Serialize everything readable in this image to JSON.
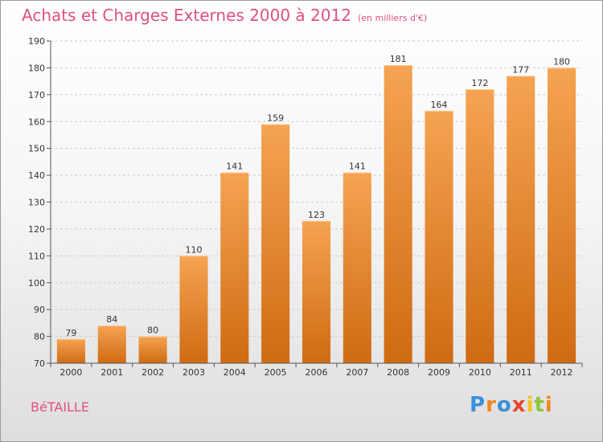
{
  "title": "Achats et Charges Externes 2000 à 2012",
  "unit_note": "(en milliers d'€)",
  "commune": "BéTAILLE",
  "logo": {
    "letters": [
      "P",
      "r",
      "o",
      "x",
      "i",
      "t",
      "i"
    ]
  },
  "colors": {
    "bar_top": "#f5a352",
    "bar_bottom": "#cf6b12",
    "title": "#e0527a",
    "grid": "#cccccc"
  },
  "chart_data": {
    "type": "bar",
    "title": "Achats et Charges Externes 2000 à 2012",
    "subtitle": "(en milliers d'€)",
    "xlabel": "",
    "ylabel": "",
    "categories": [
      "2000",
      "2001",
      "2002",
      "2003",
      "2004",
      "2005",
      "2006",
      "2007",
      "2008",
      "2009",
      "2010",
      "2011",
      "2012"
    ],
    "values": [
      79,
      84,
      80,
      110,
      141,
      159,
      123,
      141,
      181,
      164,
      172,
      177,
      180
    ],
    "ylim": [
      70,
      190
    ],
    "yticks": [
      70,
      80,
      90,
      100,
      110,
      120,
      130,
      140,
      150,
      160,
      170,
      180,
      190
    ],
    "grid": "horizontal-dashed",
    "legend": "none"
  }
}
